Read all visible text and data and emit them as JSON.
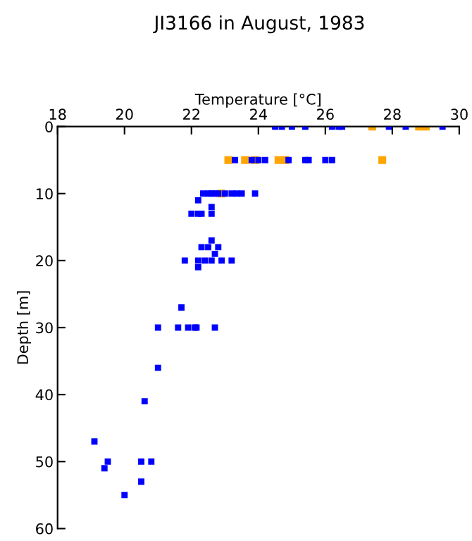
{
  "chart_data": {
    "type": "scatter",
    "title": "JI3166 in August, 1983",
    "xlabel": "Temperature [°C]",
    "ylabel": "Depth [m]",
    "xlim": [
      18,
      30
    ],
    "xticks": [
      18,
      20,
      22,
      24,
      26,
      28,
      30
    ],
    "ylim": [
      60,
      0
    ],
    "yticks": [
      0,
      10,
      20,
      30,
      40,
      50,
      60
    ],
    "marker": "square",
    "grid": false,
    "legend": false,
    "series": [
      {
        "color": "#0000ff",
        "x": [
          24.5,
          24.7,
          25.0,
          25.4,
          26.2,
          26.4,
          26.5,
          27.9,
          28.4,
          29.5,
          23.3,
          23.8,
          24.0,
          24.2,
          24.9,
          25.4,
          25.5,
          26.0,
          26.2,
          22.35,
          22.5,
          22.6,
          22.7,
          22.8,
          23.0,
          23.2,
          23.35,
          23.5,
          23.9,
          22.2,
          22.6,
          22.0,
          22.2,
          22.3,
          22.6,
          22.6,
          22.3,
          22.5,
          22.8,
          22.7,
          21.8,
          22.2,
          22.4,
          22.6,
          22.9,
          23.2,
          22.2,
          21.7,
          21.0,
          21.6,
          21.9,
          22.1,
          22.15,
          22.7,
          21.0,
          20.6,
          19.1,
          19.5,
          20.5,
          20.8,
          19.4,
          20.5,
          20.0
        ],
        "values": [
          0,
          0,
          0,
          0,
          0,
          0,
          0,
          0,
          0,
          0,
          5,
          5,
          5,
          5,
          5,
          5,
          5,
          5,
          5,
          10,
          10,
          10,
          10,
          10,
          10,
          10,
          10,
          10,
          10,
          11,
          12,
          13,
          13,
          13,
          13,
          17,
          18,
          18,
          18,
          19,
          20,
          20,
          20,
          20,
          20,
          20,
          21,
          27,
          30,
          30,
          30,
          30,
          30,
          30,
          36,
          41,
          47,
          50,
          50,
          50,
          51,
          53,
          55
        ]
      },
      {
        "color": "#ffa500",
        "x": [
          27.4,
          28.8,
          29.0,
          23.1,
          23.6,
          23.9,
          24.6,
          24.8,
          27.7,
          22.9
        ],
        "values": [
          0,
          0,
          0,
          5,
          5,
          5,
          5,
          5,
          5,
          10
        ]
      }
    ]
  }
}
